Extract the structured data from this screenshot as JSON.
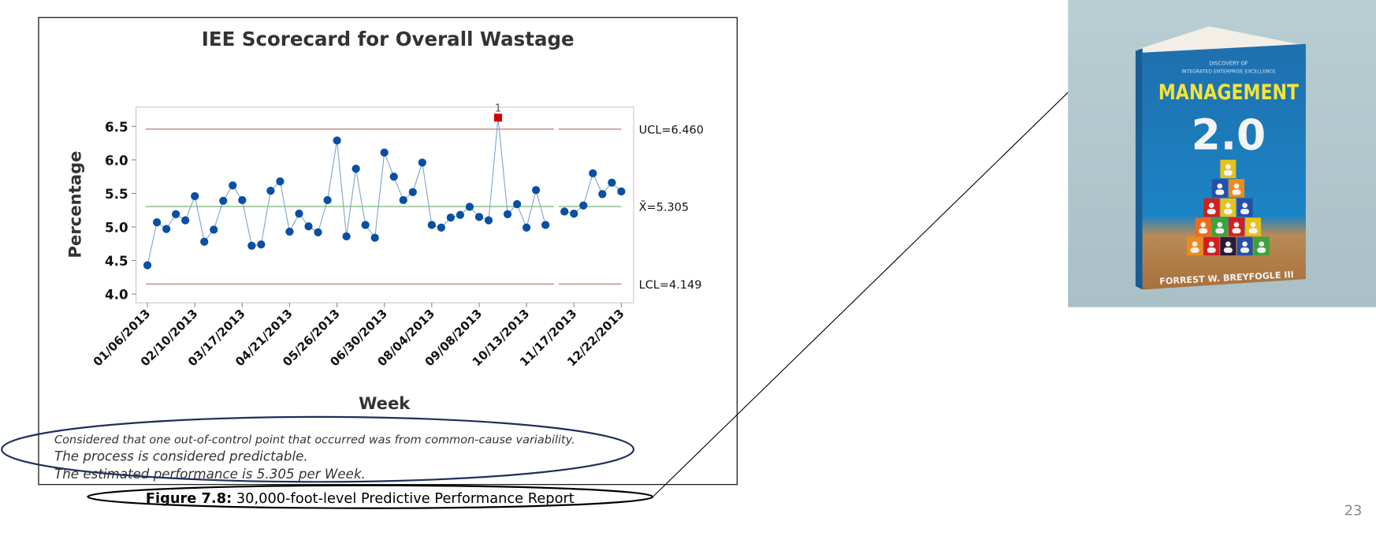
{
  "chart_data": {
    "type": "line",
    "title": "IEE Scorecard for Overall Wastage",
    "xlabel": "Week",
    "ylabel": "Percentage",
    "ylim": [
      3.95,
      6.77
    ],
    "yticks": [
      "4.0",
      "4.5",
      "5.0",
      "5.5",
      "6.0",
      "6.5"
    ],
    "ytick_values": [
      4.0,
      4.5,
      5.0,
      5.5,
      6.0,
      6.5
    ],
    "xtick_labels": [
      "01/06/2013",
      "02/10/2013",
      "03/17/2013",
      "04/21/2013",
      "05/26/2013",
      "06/30/2013",
      "08/04/2013",
      "09/08/2013",
      "10/13/2013",
      "11/17/2013",
      "12/22/2013"
    ],
    "xtick_every": 5,
    "n_weeks": 51,
    "break_after_index": 42,
    "values": [
      4.43,
      5.07,
      4.97,
      5.19,
      5.1,
      5.46,
      4.78,
      4.96,
      5.39,
      5.62,
      5.4,
      4.72,
      4.74,
      5.54,
      5.68,
      4.93,
      5.2,
      5.01,
      4.92,
      5.4,
      6.29,
      4.86,
      5.87,
      5.03,
      4.84,
      6.11,
      5.75,
      5.4,
      5.52,
      5.96,
      5.03,
      4.99,
      5.14,
      5.18,
      5.3,
      5.15,
      5.1,
      6.63,
      5.19,
      5.34,
      4.99,
      5.55,
      5.03,
      null,
      5.23,
      5.2,
      5.32,
      5.8,
      5.49,
      5.66,
      5.53
    ],
    "out_of_control": [
      {
        "index": 37,
        "label": "1"
      }
    ],
    "control_limits": {
      "ucl": 6.46,
      "ucl_label": "UCL=6.460",
      "center": 5.305,
      "center_label": "X̄=5.305",
      "lcl": 4.149,
      "lcl_label": "LCL=4.149"
    },
    "colors": {
      "points": "#0a4fa3",
      "line": "#7fa6c9",
      "limits": "#c98a8a",
      "center": "#8fbf8f",
      "ooc": "#d10000"
    }
  },
  "notes": [
    "Considered that one out-of-control point that occurred was from common-cause variability.",
    "The process is considered predictable.",
    "The estimated performance is 5.305 per Week."
  ],
  "caption": {
    "bold": "Figure 7.8:",
    "text": " 30,000-foot-level Predictive Performance Report"
  },
  "book": {
    "top1": "DISCOVERY OF",
    "top2": "INTEGRATED ENTERPRISE EXCELLENCE",
    "title": "MANAGEMENT",
    "subtitle": "2.0",
    "author": "FORREST W. BREYFOGLE III"
  },
  "page_number": "23"
}
